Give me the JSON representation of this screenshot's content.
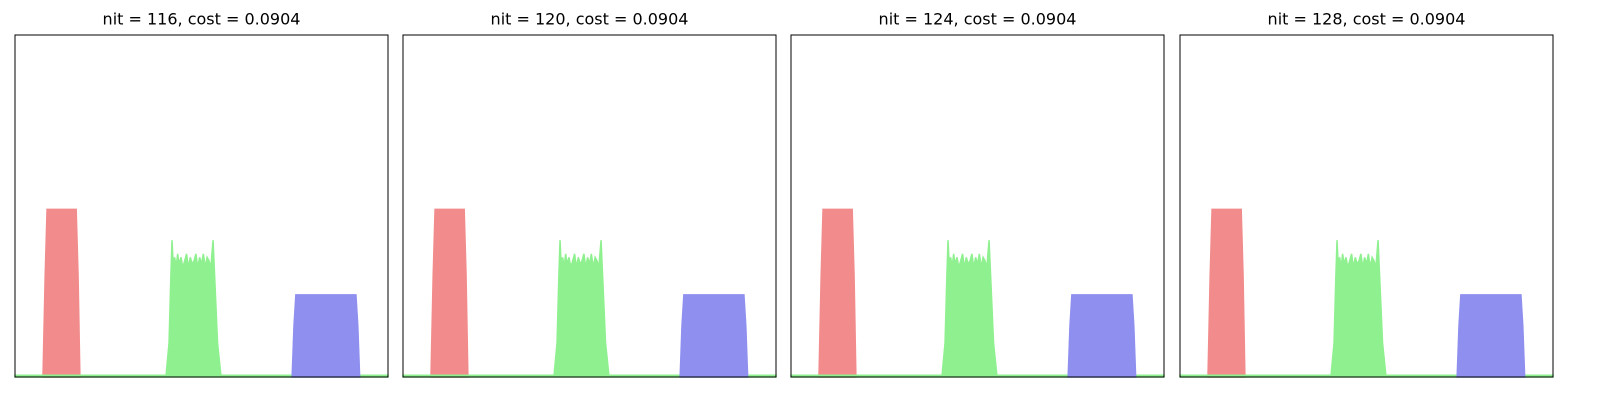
{
  "chart_data": [
    {
      "type": "area",
      "title": "nit = 116, cost = 0.0904",
      "xlim": [
        0,
        100
      ],
      "ylim": [
        0,
        1
      ],
      "series": [
        {
          "color": "#f28b8b",
          "x": [
            7.5,
            8.1,
            8.6,
            16.4,
            16.9,
            17.4
          ],
          "values": [
            0,
            0.3,
            0.49,
            0.49,
            0.3,
            0
          ]
        },
        {
          "color": "#8ef08e",
          "x": [
            0,
            40.5,
            41.3,
            41.8,
            42.1,
            42.4,
            42.8,
            43.2,
            43.6,
            44.0,
            44.5,
            45,
            45.5,
            46,
            46.5,
            47,
            47.5,
            48,
            48.5,
            49,
            49.5,
            50,
            50.5,
            51,
            51.5,
            52,
            52.5,
            53.1,
            53.5,
            54.3,
            55.2,
            100
          ],
          "values": [
            0.005,
            0.005,
            0.1,
            0.3,
            0.4,
            0.33,
            0.35,
            0.32,
            0.36,
            0.33,
            0.35,
            0.32,
            0.34,
            0.36,
            0.32,
            0.35,
            0.33,
            0.34,
            0.36,
            0.32,
            0.35,
            0.33,
            0.36,
            0.32,
            0.35,
            0.34,
            0.32,
            0.4,
            0.3,
            0.1,
            0.005,
            0.005
          ]
        },
        {
          "color": "#8f8ff0",
          "x": [
            74.3,
            74.8,
            75.3,
            91.4,
            91.9,
            92.4
          ],
          "values": [
            0,
            0.15,
            0.24,
            0.24,
            0.15,
            0
          ]
        }
      ]
    },
    {
      "type": "area",
      "title": "nit = 120, cost = 0.0904",
      "xlim": [
        0,
        100
      ],
      "ylim": [
        0,
        1
      ],
      "series": [
        {
          "color": "#f28b8b",
          "x": [
            7.5,
            8.1,
            8.6,
            16.4,
            16.9,
            17.4
          ],
          "values": [
            0,
            0.3,
            0.49,
            0.49,
            0.3,
            0
          ]
        },
        {
          "color": "#8ef08e",
          "x": [
            0,
            40.5,
            41.3,
            41.8,
            42.1,
            42.4,
            42.8,
            43.2,
            43.6,
            44.0,
            44.5,
            45,
            45.5,
            46,
            46.5,
            47,
            47.5,
            48,
            48.5,
            49,
            49.5,
            50,
            50.5,
            51,
            51.5,
            52,
            52.5,
            53.1,
            53.5,
            54.3,
            55.2,
            100
          ],
          "values": [
            0.005,
            0.005,
            0.1,
            0.3,
            0.4,
            0.33,
            0.35,
            0.32,
            0.36,
            0.33,
            0.35,
            0.32,
            0.34,
            0.36,
            0.32,
            0.35,
            0.33,
            0.34,
            0.36,
            0.32,
            0.35,
            0.33,
            0.36,
            0.32,
            0.35,
            0.34,
            0.32,
            0.4,
            0.3,
            0.1,
            0.005,
            0.005
          ]
        },
        {
          "color": "#8f8ff0",
          "x": [
            74.3,
            74.8,
            75.3,
            91.4,
            91.9,
            92.4
          ],
          "values": [
            0,
            0.15,
            0.24,
            0.24,
            0.15,
            0
          ]
        }
      ]
    },
    {
      "type": "area",
      "title": "nit = 124, cost = 0.0904",
      "xlim": [
        0,
        100
      ],
      "ylim": [
        0,
        1
      ],
      "series": [
        {
          "color": "#f28b8b",
          "x": [
            7.5,
            8.1,
            8.6,
            16.4,
            16.9,
            17.4
          ],
          "values": [
            0,
            0.3,
            0.49,
            0.49,
            0.3,
            0
          ]
        },
        {
          "color": "#8ef08e",
          "x": [
            0,
            40.5,
            41.3,
            41.8,
            42.1,
            42.4,
            42.8,
            43.2,
            43.6,
            44.0,
            44.5,
            45,
            45.5,
            46,
            46.5,
            47,
            47.5,
            48,
            48.5,
            49,
            49.5,
            50,
            50.5,
            51,
            51.5,
            52,
            52.5,
            53.1,
            53.5,
            54.3,
            55.2,
            100
          ],
          "values": [
            0.005,
            0.005,
            0.1,
            0.3,
            0.4,
            0.33,
            0.35,
            0.32,
            0.36,
            0.33,
            0.35,
            0.32,
            0.34,
            0.36,
            0.32,
            0.35,
            0.33,
            0.34,
            0.36,
            0.32,
            0.35,
            0.33,
            0.36,
            0.32,
            0.35,
            0.34,
            0.32,
            0.4,
            0.3,
            0.1,
            0.005,
            0.005
          ]
        },
        {
          "color": "#8f8ff0",
          "x": [
            74.3,
            74.8,
            75.3,
            91.4,
            91.9,
            92.4
          ],
          "values": [
            0,
            0.15,
            0.24,
            0.24,
            0.15,
            0
          ]
        }
      ]
    },
    {
      "type": "area",
      "title": "nit = 128, cost = 0.0904",
      "xlim": [
        0,
        100
      ],
      "ylim": [
        0,
        1
      ],
      "series": [
        {
          "color": "#f28b8b",
          "x": [
            7.5,
            8.1,
            8.6,
            16.4,
            16.9,
            17.4
          ],
          "values": [
            0,
            0.3,
            0.49,
            0.49,
            0.3,
            0
          ]
        },
        {
          "color": "#8ef08e",
          "x": [
            0,
            40.5,
            41.3,
            41.8,
            42.1,
            42.4,
            42.8,
            43.2,
            43.6,
            44.0,
            44.5,
            45,
            45.5,
            46,
            46.5,
            47,
            47.5,
            48,
            48.5,
            49,
            49.5,
            50,
            50.5,
            51,
            51.5,
            52,
            52.5,
            53.1,
            53.5,
            54.3,
            55.2,
            100
          ],
          "values": [
            0.005,
            0.005,
            0.1,
            0.3,
            0.4,
            0.33,
            0.35,
            0.32,
            0.36,
            0.33,
            0.35,
            0.32,
            0.34,
            0.36,
            0.32,
            0.35,
            0.33,
            0.34,
            0.36,
            0.32,
            0.35,
            0.33,
            0.36,
            0.32,
            0.35,
            0.34,
            0.32,
            0.4,
            0.3,
            0.1,
            0.005,
            0.005
          ]
        },
        {
          "color": "#8f8ff0",
          "x": [
            74.3,
            74.8,
            75.3,
            91.4,
            91.9,
            92.4
          ],
          "values": [
            0,
            0.15,
            0.24,
            0.24,
            0.15,
            0
          ]
        }
      ]
    }
  ]
}
